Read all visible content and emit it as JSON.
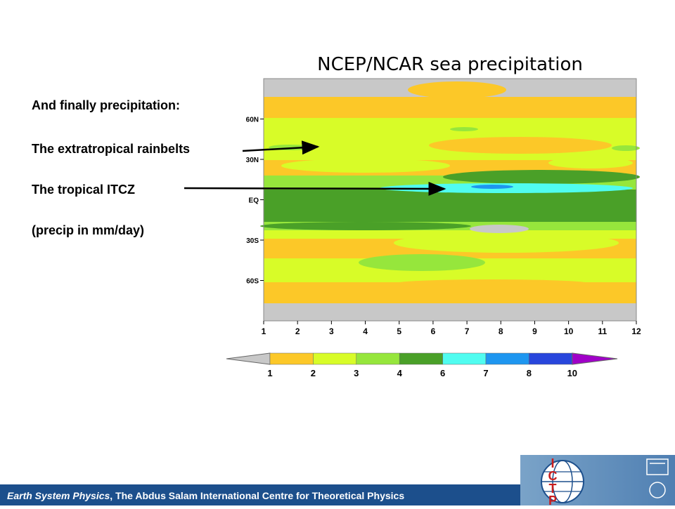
{
  "slide": {
    "lines": [
      "And finally precipitation:",
      "The extratropical rainbelts",
      "The tropical ITCZ",
      "(precip in mm/day)"
    ],
    "footer_italic": "Earth System Physics",
    "footer_rest": ", The Abdus Salam International Centre for Theoretical Physics",
    "logo_letters": [
      "I",
      "C",
      "T",
      "P"
    ]
  },
  "chart_data": {
    "type": "heatmap",
    "title": "NCEP/NCAR sea precipitation",
    "x_ticks": [
      "1",
      "2",
      "3",
      "4",
      "5",
      "6",
      "7",
      "8",
      "9",
      "10",
      "11",
      "12"
    ],
    "y_ticks": [
      "60N",
      "30N",
      "EQ",
      "30S",
      "60S"
    ],
    "xlim": [
      1,
      12
    ],
    "ylim": [
      -90,
      90
    ],
    "colorbar": {
      "levels": [
        "1",
        "2",
        "3",
        "4",
        "6",
        "7",
        "8",
        "10"
      ],
      "colors": [
        "#c8c8c8",
        "#fcc828",
        "#d8fc28",
        "#96e63c",
        "#4aa028",
        "#50fcf0",
        "#1e96f0",
        "#2846dc",
        "#a000c8"
      ]
    },
    "fill_colors": {
      "dry": "#c8c8c8",
      "c1": "#fcc828",
      "c2": "#d8fc28",
      "c3": "#96e63c",
      "c4": "#4aa028",
      "c6": "#50fcf0",
      "c7": "#1e96f0"
    }
  }
}
